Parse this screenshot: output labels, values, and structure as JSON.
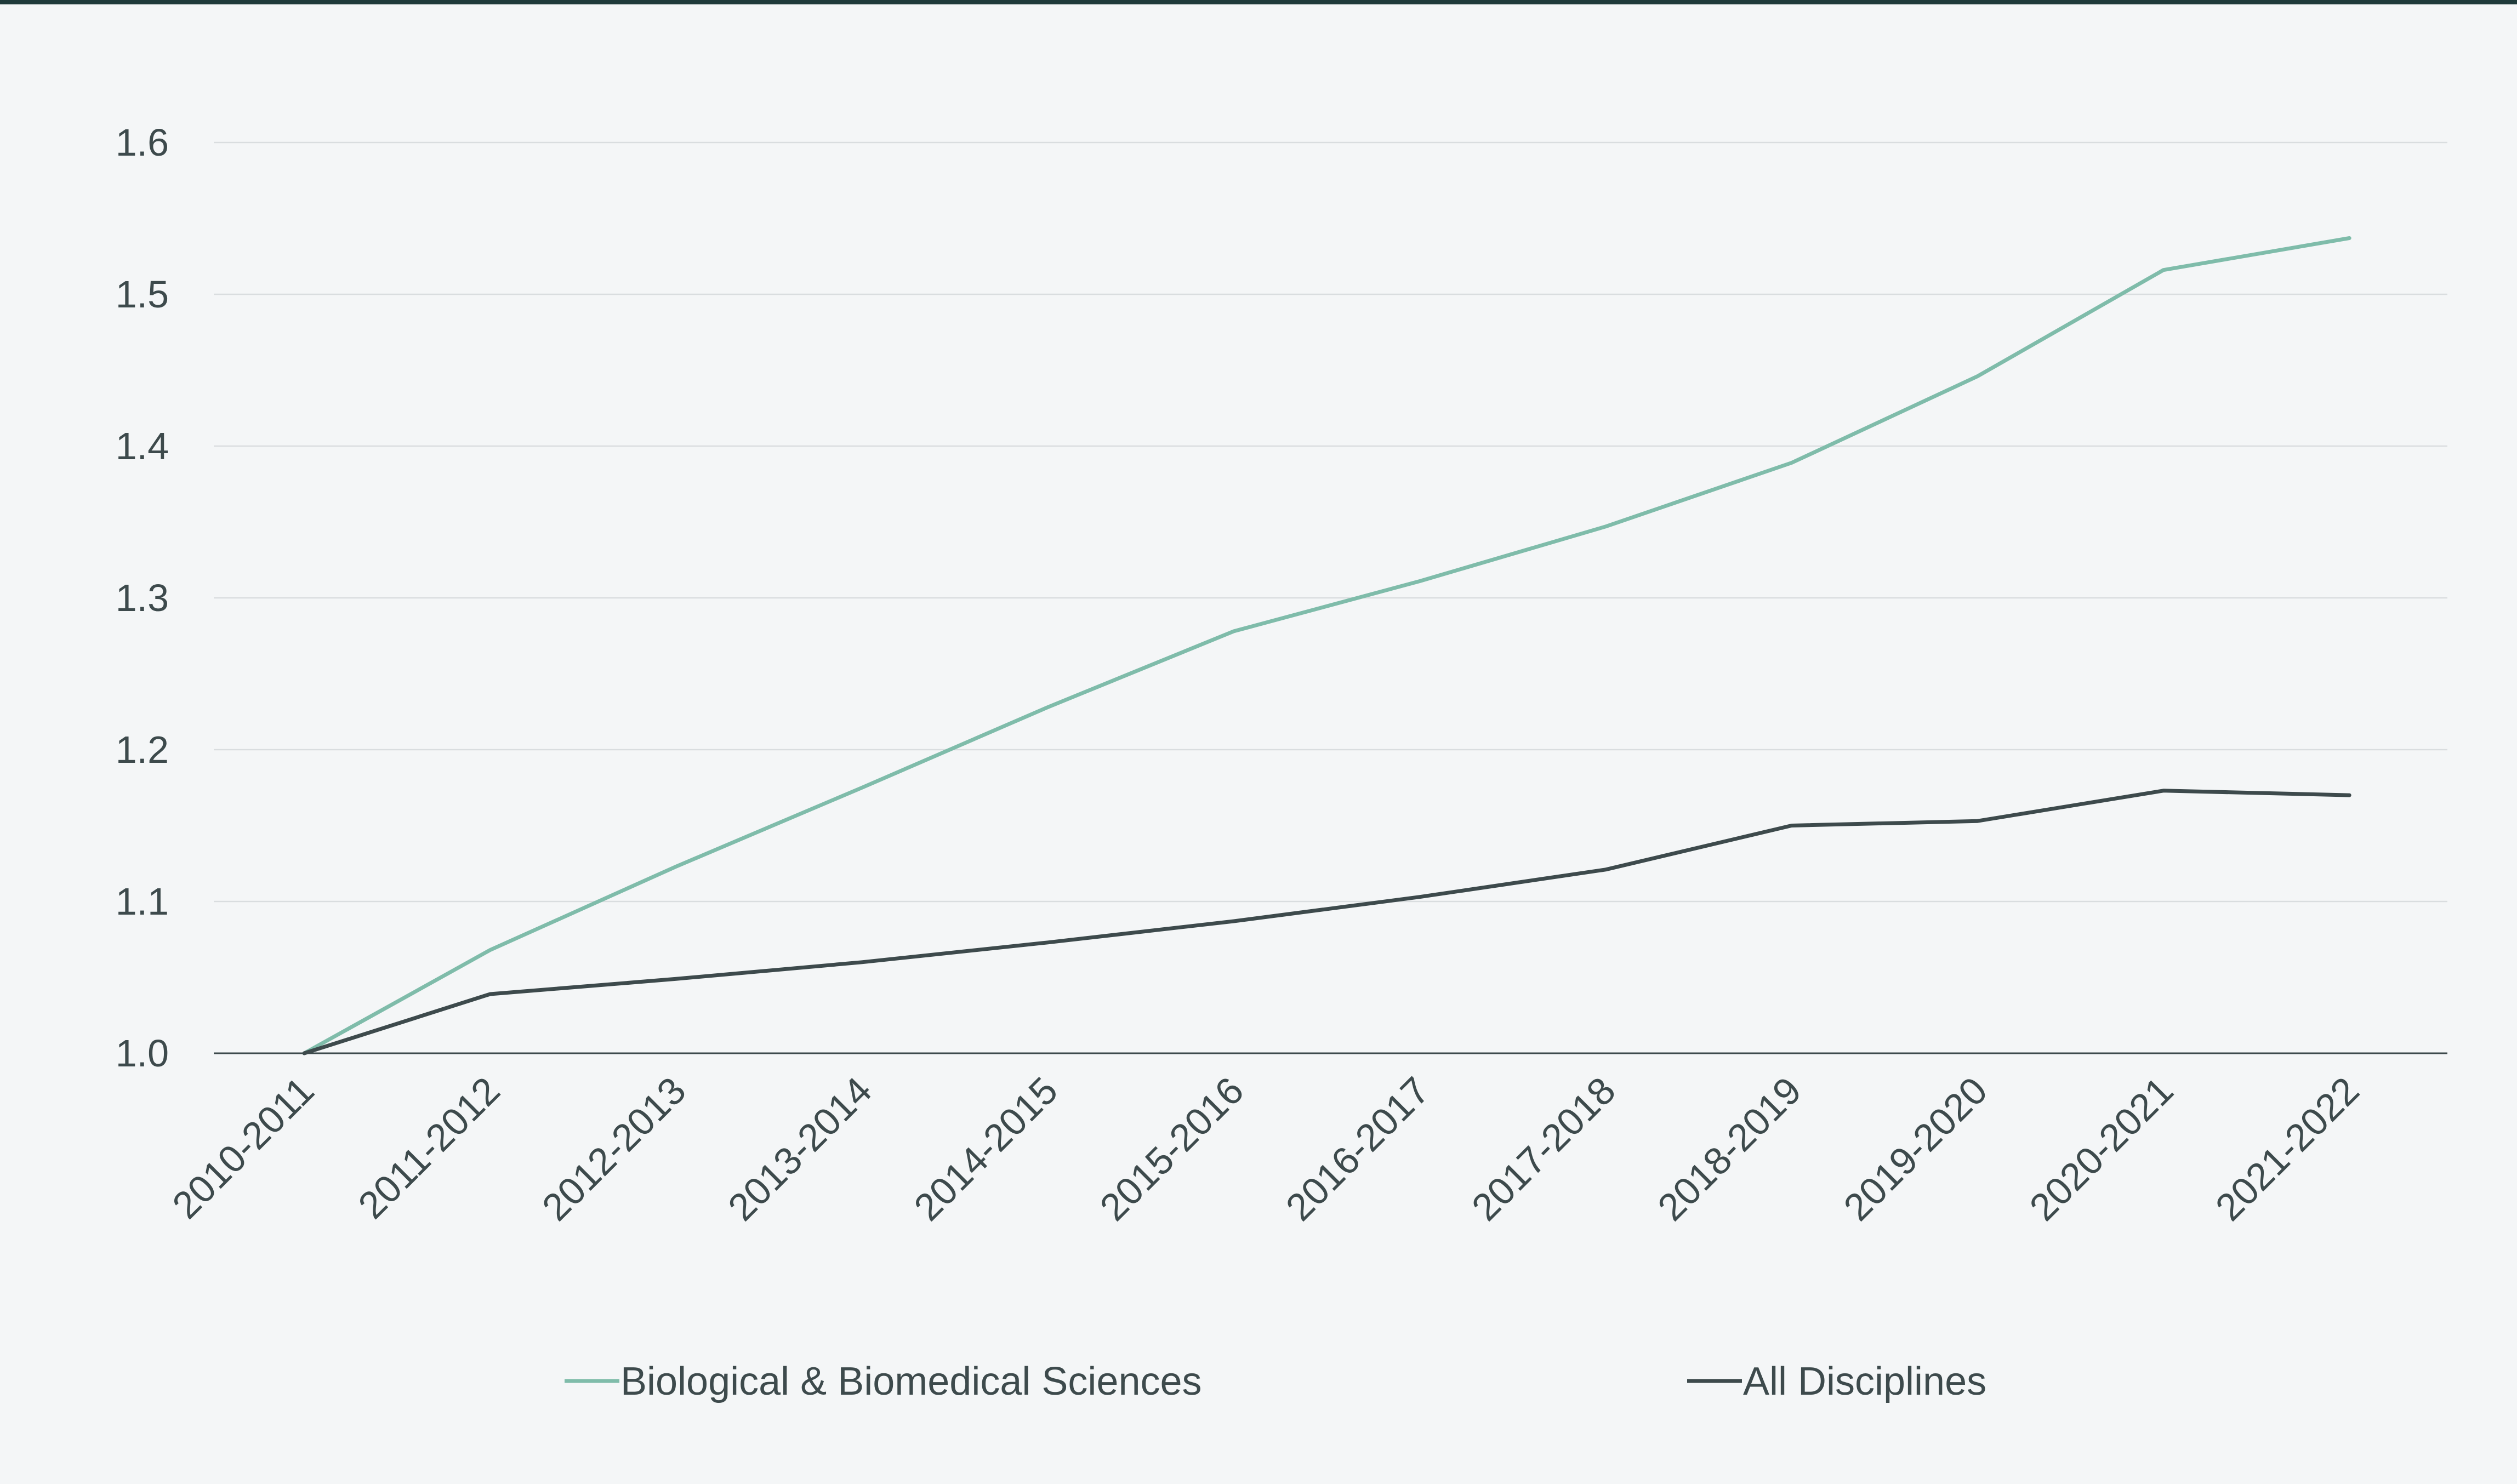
{
  "chart_data": {
    "type": "line",
    "title": "",
    "xlabel": "",
    "ylabel": "",
    "categories": [
      "2010-2011",
      "2011-2012",
      "2012-2013",
      "2013-2014",
      "2014-2015",
      "2015-2016",
      "2016-2017",
      "2017-2018",
      "2018-2019",
      "2019-2020",
      "2020-2021",
      "2021-2022"
    ],
    "ylim": [
      1.0,
      1.6
    ],
    "yticks": [
      "1.0",
      "1.1",
      "1.2",
      "1.3",
      "1.4",
      "1.5",
      "1.6"
    ],
    "grid": true,
    "legend_position": "bottom",
    "series": [
      {
        "name": "Biological & Biomedical Sciences",
        "color": "#7fbcaa",
        "values": [
          1.0,
          1.068,
          1.123,
          1.175,
          1.228,
          1.278,
          1.311,
          1.347,
          1.389,
          1.446,
          1.516,
          1.537
        ]
      },
      {
        "name": "All Disciplines",
        "color": "#3d4a4c",
        "values": [
          1.0,
          1.039,
          1.049,
          1.06,
          1.073,
          1.087,
          1.103,
          1.121,
          1.15,
          1.153,
          1.173,
          1.17
        ]
      }
    ],
    "colors": {
      "gridline": "#d9dddf",
      "baseline": "#3d4a4c",
      "background": "#f4f6f7"
    }
  }
}
